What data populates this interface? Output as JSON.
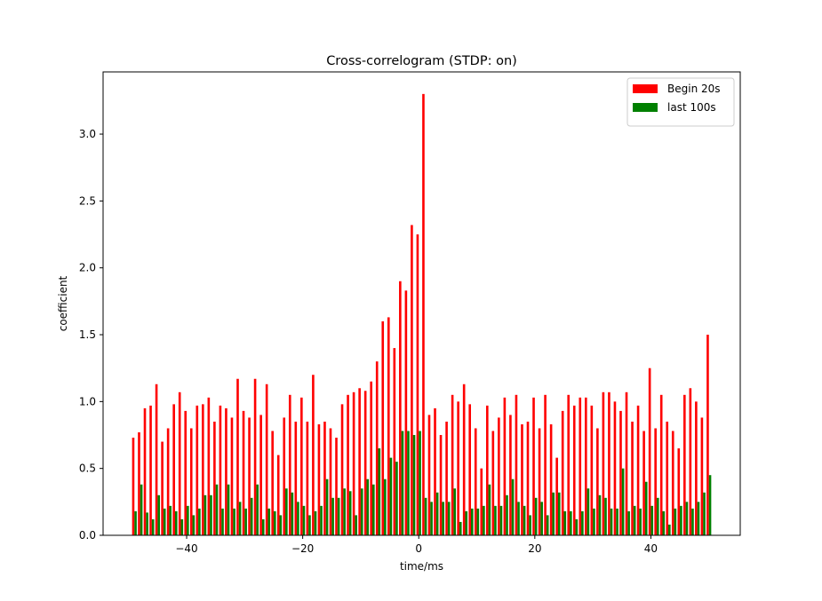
{
  "chart_data": {
    "type": "bar",
    "title": "Cross-correlogram (STDP: on)",
    "x_label": "time/ms",
    "y_label": "coefficient",
    "x": [
      -49,
      -48,
      -47,
      -46,
      -45,
      -44,
      -43,
      -42,
      -41,
      -40,
      -39,
      -38,
      -37,
      -36,
      -35,
      -34,
      -33,
      -32,
      -31,
      -30,
      -29,
      -28,
      -27,
      -26,
      -25,
      -24,
      -23,
      -22,
      -21,
      -20,
      -19,
      -18,
      -17,
      -16,
      -15,
      -14,
      -13,
      -12,
      -11,
      -10,
      -9,
      -8,
      -7,
      -6,
      -5,
      -4,
      -3,
      -2,
      -1,
      0,
      1,
      2,
      3,
      4,
      5,
      6,
      7,
      8,
      9,
      10,
      11,
      12,
      13,
      14,
      15,
      16,
      17,
      18,
      19,
      20,
      21,
      22,
      23,
      24,
      25,
      26,
      27,
      28,
      29,
      30,
      31,
      32,
      33,
      34,
      35,
      36,
      37,
      38,
      39,
      40,
      41,
      42,
      43,
      44,
      45,
      46,
      47,
      48,
      49,
      50
    ],
    "series": [
      {
        "name": "Begin 20s",
        "color": "#ff0000",
        "values": [
          0.73,
          0.77,
          0.95,
          0.97,
          1.13,
          0.7,
          0.8,
          0.98,
          1.07,
          0.93,
          0.8,
          0.97,
          0.98,
          1.03,
          0.85,
          0.97,
          0.95,
          0.88,
          1.17,
          0.93,
          0.88,
          1.17,
          0.9,
          1.13,
          0.78,
          0.6,
          0.88,
          1.05,
          0.85,
          1.03,
          0.85,
          1.2,
          0.83,
          0.85,
          0.8,
          0.73,
          0.98,
          1.05,
          1.07,
          1.1,
          1.08,
          1.15,
          1.3,
          1.6,
          1.63,
          1.4,
          1.9,
          1.83,
          2.32,
          2.25,
          3.3,
          0.9,
          0.95,
          0.75,
          0.85,
          1.05,
          1.0,
          1.13,
          0.98,
          0.8,
          0.5,
          0.97,
          0.78,
          0.88,
          1.03,
          0.9,
          1.05,
          0.83,
          0.85,
          1.03,
          0.8,
          1.05,
          0.83,
          0.58,
          0.93,
          1.05,
          0.97,
          1.03,
          1.03,
          0.97,
          0.8,
          1.07,
          1.07,
          1.0,
          0.93,
          1.07,
          0.85,
          0.97,
          0.78,
          1.25,
          0.8,
          1.05,
          0.85,
          0.78,
          0.65,
          1.05,
          1.1,
          1.0,
          0.88,
          1.5
        ]
      },
      {
        "name": "last 100s",
        "color": "#008000",
        "values": [
          0.18,
          0.38,
          0.17,
          0.12,
          0.3,
          0.2,
          0.22,
          0.18,
          0.12,
          0.22,
          0.15,
          0.2,
          0.3,
          0.3,
          0.38,
          0.2,
          0.38,
          0.2,
          0.25,
          0.2,
          0.28,
          0.38,
          0.12,
          0.2,
          0.18,
          0.15,
          0.35,
          0.32,
          0.25,
          0.22,
          0.15,
          0.18,
          0.22,
          0.42,
          0.28,
          0.28,
          0.35,
          0.33,
          0.15,
          0.35,
          0.42,
          0.38,
          0.65,
          0.42,
          0.58,
          0.55,
          0.78,
          0.78,
          0.75,
          0.78,
          0.28,
          0.25,
          0.32,
          0.25,
          0.25,
          0.35,
          0.1,
          0.18,
          0.2,
          0.2,
          0.22,
          0.38,
          0.22,
          0.22,
          0.3,
          0.42,
          0.25,
          0.22,
          0.15,
          0.28,
          0.25,
          0.15,
          0.32,
          0.32,
          0.18,
          0.18,
          0.12,
          0.18,
          0.35,
          0.2,
          0.3,
          0.28,
          0.2,
          0.2,
          0.5,
          0.18,
          0.22,
          0.2,
          0.4,
          0.22,
          0.28,
          0.18,
          0.08,
          0.2,
          0.22,
          0.25,
          0.2,
          0.25,
          0.32,
          0.45
        ]
      }
    ],
    "xlim": [
      -54.4,
      55.4
    ],
    "xticks": [
      {
        "value": -40,
        "label": "−40"
      },
      {
        "value": -20,
        "label": "−20"
      },
      0,
      20,
      40
    ],
    "ylim": [
      0,
      3.465
    ],
    "yticks": [
      {
        "value": 0,
        "label": "0.0"
      },
      0.5,
      {
        "value": 1,
        "label": "1.0"
      },
      1.5,
      {
        "value": 2,
        "label": "2.0"
      },
      2.5,
      {
        "value": 3,
        "label": "3.0"
      }
    ],
    "legend": "upper right"
  }
}
